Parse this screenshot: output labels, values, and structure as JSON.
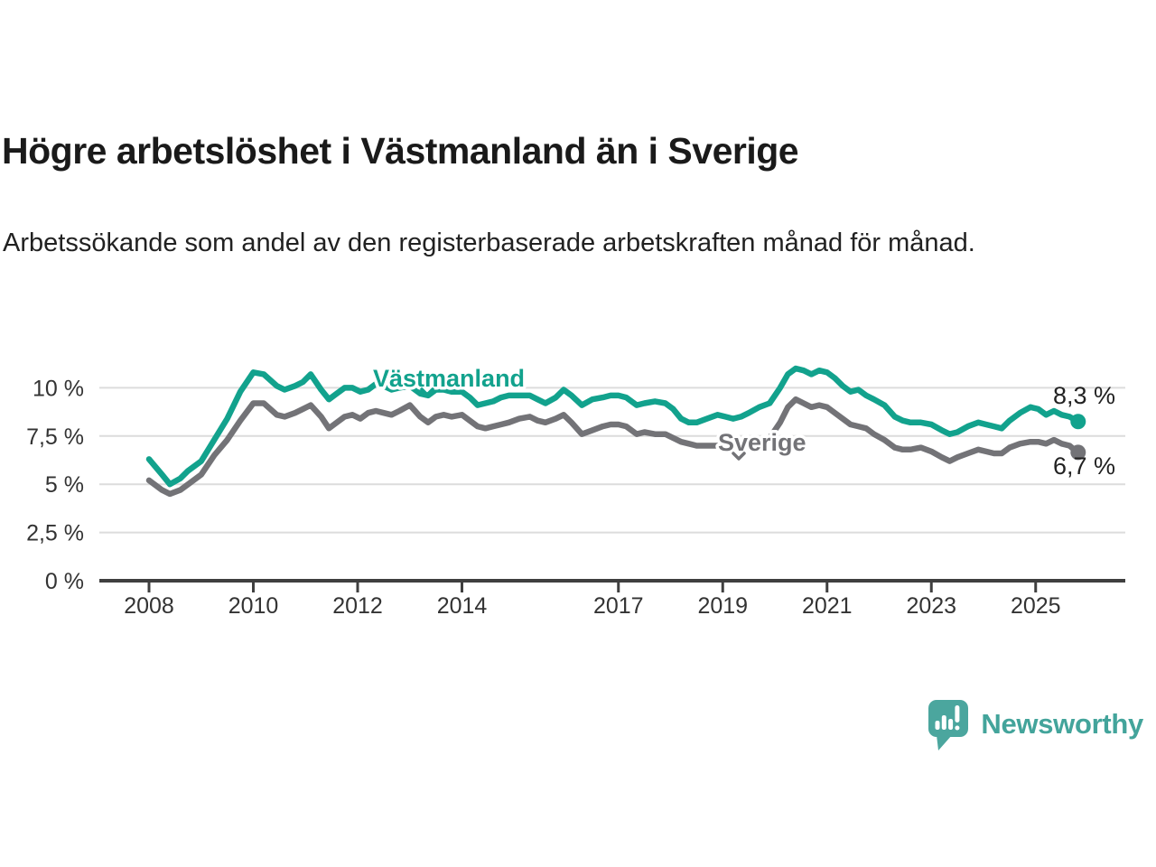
{
  "header": {
    "title": "Högre arbetslöshet i Västmanland än i Sverige",
    "subtitle": "Arbetssökande som andel av den registerbaserade arbetskraften månad för månad."
  },
  "chart_data": {
    "type": "line",
    "unit": "%",
    "grid": true,
    "legend_position": "inline-labels-on-lines",
    "xlim": [
      2007.8,
      2026.2
    ],
    "ylim": [
      0,
      11.6
    ],
    "x_ticks": [
      2008,
      2010,
      2012,
      2014,
      2017,
      2019,
      2021,
      2023,
      2025
    ],
    "y_ticks": [
      {
        "value": 0,
        "label": "0 %"
      },
      {
        "value": 2.5,
        "label": "2,5 %"
      },
      {
        "value": 5,
        "label": "5 %"
      },
      {
        "value": 7.5,
        "label": "7,5 %"
      },
      {
        "value": 10,
        "label": "10 %"
      }
    ],
    "x": [
      2008.0,
      2008.25,
      2008.4,
      2008.6,
      2008.75,
      2009.0,
      2009.25,
      2009.5,
      2009.75,
      2010.0,
      2010.2,
      2010.45,
      2010.6,
      2010.8,
      2010.95,
      2011.1,
      2011.3,
      2011.45,
      2011.6,
      2011.75,
      2011.9,
      2012.05,
      2012.2,
      2012.35,
      2012.5,
      2012.65,
      2012.8,
      2013.0,
      2013.2,
      2013.35,
      2013.5,
      2013.65,
      2013.8,
      2014.0,
      2014.15,
      2014.3,
      2014.45,
      2014.6,
      2014.75,
      2014.9,
      2015.1,
      2015.3,
      2015.45,
      2015.6,
      2015.8,
      2015.95,
      2016.1,
      2016.3,
      2016.5,
      2016.7,
      2016.85,
      2017.0,
      2017.15,
      2017.35,
      2017.5,
      2017.7,
      2017.9,
      2018.05,
      2018.2,
      2018.35,
      2018.5,
      2018.7,
      2018.9,
      2019.05,
      2019.2,
      2019.35,
      2019.5,
      2019.7,
      2019.9,
      2020.1,
      2020.25,
      2020.4,
      2020.55,
      2020.7,
      2020.85,
      2021.0,
      2021.15,
      2021.3,
      2021.45,
      2021.6,
      2021.75,
      2021.9,
      2022.1,
      2022.3,
      2022.45,
      2022.6,
      2022.8,
      2023.0,
      2023.2,
      2023.35,
      2023.5,
      2023.7,
      2023.9,
      2024.05,
      2024.2,
      2024.35,
      2024.5,
      2024.7,
      2024.9,
      2025.05,
      2025.2,
      2025.35,
      2025.5,
      2025.65,
      2025.78
    ],
    "series": [
      {
        "name": "Västmanland",
        "color": "#12a28d",
        "end_label": "8,3 %",
        "end_value": 8.3,
        "values": [
          6.3,
          5.5,
          5.0,
          5.3,
          5.7,
          6.2,
          7.3,
          8.4,
          9.8,
          10.8,
          10.7,
          10.1,
          9.9,
          10.1,
          10.3,
          10.7,
          9.9,
          9.4,
          9.7,
          10.0,
          10.0,
          9.8,
          9.9,
          10.2,
          10.1,
          9.9,
          10.0,
          10.1,
          9.7,
          9.6,
          9.9,
          9.9,
          9.8,
          9.8,
          9.5,
          9.1,
          9.2,
          9.3,
          9.5,
          9.6,
          9.6,
          9.6,
          9.4,
          9.2,
          9.5,
          9.9,
          9.6,
          9.1,
          9.4,
          9.5,
          9.6,
          9.6,
          9.5,
          9.1,
          9.2,
          9.3,
          9.2,
          8.9,
          8.4,
          8.2,
          8.2,
          8.4,
          8.6,
          8.5,
          8.4,
          8.5,
          8.7,
          9.0,
          9.2,
          10.0,
          10.7,
          11.0,
          10.9,
          10.7,
          10.9,
          10.8,
          10.5,
          10.1,
          9.8,
          9.9,
          9.6,
          9.4,
          9.1,
          8.5,
          8.3,
          8.2,
          8.2,
          8.1,
          7.8,
          7.6,
          7.7,
          8.0,
          8.2,
          8.1,
          8.0,
          7.9,
          8.3,
          8.7,
          9.0,
          8.9,
          8.6,
          8.8,
          8.6,
          8.5,
          8.3
        ]
      },
      {
        "name": "Sverige",
        "color": "#737377",
        "end_label": "6,7 %",
        "end_value": 6.7,
        "values": [
          5.2,
          4.7,
          4.5,
          4.7,
          5.0,
          5.5,
          6.5,
          7.3,
          8.3,
          9.2,
          9.2,
          8.6,
          8.5,
          8.7,
          8.9,
          9.1,
          8.5,
          7.9,
          8.2,
          8.5,
          8.6,
          8.4,
          8.7,
          8.8,
          8.7,
          8.6,
          8.8,
          9.1,
          8.5,
          8.2,
          8.5,
          8.6,
          8.5,
          8.6,
          8.3,
          8.0,
          7.9,
          8.0,
          8.1,
          8.2,
          8.4,
          8.5,
          8.3,
          8.2,
          8.4,
          8.6,
          8.2,
          7.6,
          7.8,
          8.0,
          8.1,
          8.1,
          8.0,
          7.6,
          7.7,
          7.6,
          7.6,
          7.4,
          7.2,
          7.1,
          7.0,
          7.0,
          7.0,
          7.0,
          7.0,
          6.9,
          7.0,
          7.1,
          7.4,
          8.2,
          9.0,
          9.4,
          9.2,
          9.0,
          9.1,
          9.0,
          8.7,
          8.4,
          8.1,
          8.0,
          7.9,
          7.6,
          7.3,
          6.9,
          6.8,
          6.8,
          6.9,
          6.7,
          6.4,
          6.2,
          6.4,
          6.6,
          6.8,
          6.7,
          6.6,
          6.6,
          6.9,
          7.1,
          7.2,
          7.2,
          7.1,
          7.3,
          7.1,
          7.0,
          6.7
        ]
      }
    ],
    "colors": {
      "gridline": "#dcdcdc",
      "axis": "#3f3f3f",
      "tick_label": "#333333",
      "end_label": "#222222"
    }
  },
  "branding": {
    "logo_text": "Newsworthy",
    "logo_icon": "newsworthy-speech-bubble-bar-chart-icon",
    "logo_color": "#4ba69e"
  }
}
